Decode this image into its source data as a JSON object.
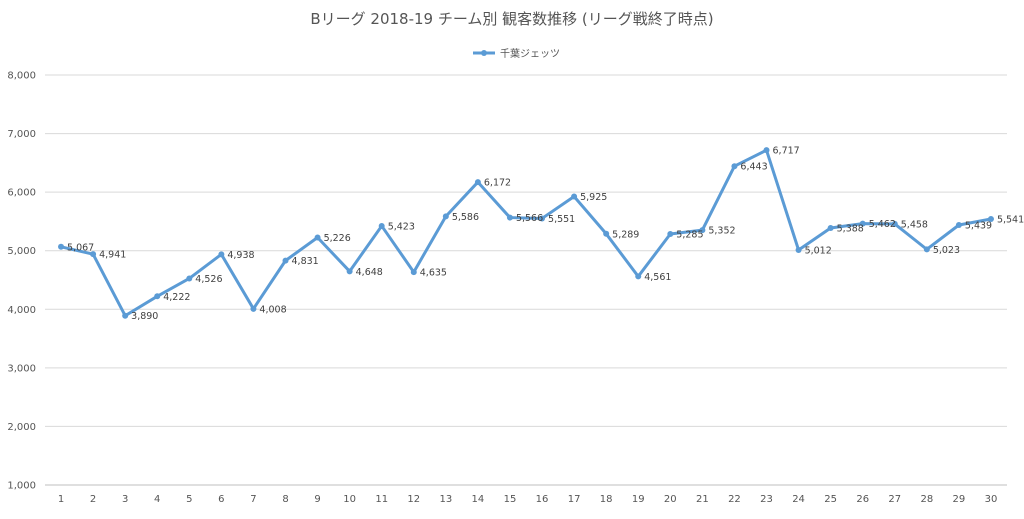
{
  "chart_data": {
    "type": "line",
    "title": "Bリーグ 2018-19 チーム別 観客数推移 (リーグ戦終了時点)",
    "xlabel": "",
    "ylabel": "",
    "ylim": [
      1000,
      8000
    ],
    "yticks": [
      1000,
      2000,
      3000,
      4000,
      5000,
      6000,
      7000,
      8000
    ],
    "ytick_labels": [
      "1,000",
      "2,000",
      "3,000",
      "4,000",
      "5,000",
      "6,000",
      "7,000",
      "8,000"
    ],
    "grid": true,
    "legend": "top-center",
    "categories": [
      "1",
      "2",
      "3",
      "4",
      "5",
      "6",
      "7",
      "8",
      "9",
      "10",
      "11",
      "12",
      "13",
      "14",
      "15",
      "16",
      "17",
      "18",
      "19",
      "20",
      "21",
      "22",
      "23",
      "24",
      "25",
      "26",
      "27",
      "28",
      "29",
      "30"
    ],
    "series": [
      {
        "name": "千葉ジェッツ",
        "color": "#5b9bd5",
        "values": [
          5067,
          4941,
          3890,
          4222,
          4526,
          4938,
          4008,
          4831,
          5226,
          4648,
          5423,
          4635,
          5586,
          6172,
          5566,
          5551,
          5925,
          5289,
          4561,
          5285,
          5352,
          6443,
          6717,
          5012,
          5388,
          5462,
          5458,
          5023,
          5439,
          5541
        ],
        "labels": [
          "5,067",
          "4,941",
          "3,890",
          "4,222",
          "4,526",
          "4,938",
          "4,008",
          "4,831",
          "5,226",
          "4,648",
          "5,423",
          "4,635",
          "5,586",
          "6,172",
          "5,566",
          "5,551",
          "5,925",
          "5,289",
          "4,561",
          "5,285",
          "5,352",
          "6,443",
          "6,717",
          "5,012",
          "5,388",
          "5,462",
          "5,458",
          "5,023",
          "5,439",
          "5,541"
        ]
      }
    ]
  }
}
